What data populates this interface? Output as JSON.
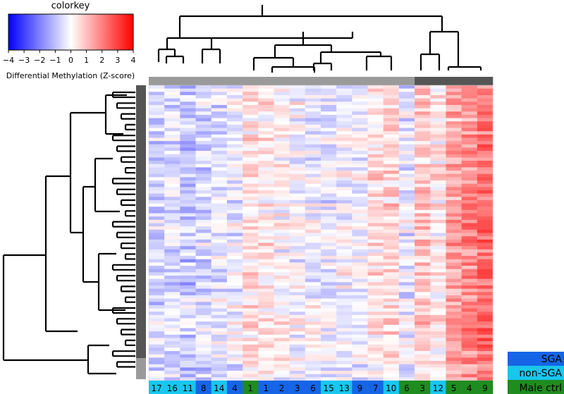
{
  "chart_data": {
    "type": "heatmap",
    "colorkey": {
      "title": "colorkey",
      "label": "Differential Methylation (Z-score)",
      "min": -4,
      "max": 4,
      "ticks": [
        "−4",
        "−3",
        "−2",
        "−1",
        "0",
        "1",
        "2",
        "3",
        "4"
      ],
      "low_color": "#0000ff",
      "mid_color": "#ffffff",
      "high_color": "#ff0000"
    },
    "columns": [
      {
        "label": "17",
        "group": "non-SGA"
      },
      {
        "label": "16",
        "group": "non-SGA"
      },
      {
        "label": "11",
        "group": "non-SGA"
      },
      {
        "label": "8",
        "group": "SGA"
      },
      {
        "label": "14",
        "group": "non-SGA"
      },
      {
        "label": "4",
        "group": "SGA"
      },
      {
        "label": "1",
        "group": "Male ctrl"
      },
      {
        "label": "1",
        "group": "SGA"
      },
      {
        "label": "2",
        "group": "SGA"
      },
      {
        "label": "3",
        "group": "SGA"
      },
      {
        "label": "6",
        "group": "SGA"
      },
      {
        "label": "15",
        "group": "non-SGA"
      },
      {
        "label": "13",
        "group": "non-SGA"
      },
      {
        "label": "9",
        "group": "SGA"
      },
      {
        "label": "7",
        "group": "SGA"
      },
      {
        "label": "10",
        "group": "non-SGA"
      },
      {
        "label": "6",
        "group": "Male ctrl"
      },
      {
        "label": "3",
        "group": "Male ctrl"
      },
      {
        "label": "12",
        "group": "non-SGA"
      },
      {
        "label": "5",
        "group": "Male ctrl"
      },
      {
        "label": "4",
        "group": "Male ctrl"
      },
      {
        "label": "9",
        "group": "Male ctrl"
      }
    ],
    "column_means": [
      -0.6,
      -0.5,
      -0.8,
      -0.6,
      -0.4,
      -0.3,
      0.5,
      0.3,
      0.1,
      -0.1,
      -0.2,
      -0.3,
      -0.1,
      -0.2,
      0.4,
      0.6,
      -0.3,
      0.9,
      0.3,
      1.4,
      1.8,
      2.2
    ],
    "row_count": 90,
    "groups": [
      {
        "name": "SGA",
        "color": "#1565e6"
      },
      {
        "name": "non-SGA",
        "color": "#18c6ee"
      },
      {
        "name": "Male ctrl",
        "color": "#1f8c1f"
      }
    ],
    "column_cluster_bar": [
      "#9a9a9a",
      "#9a9a9a",
      "#9a9a9a",
      "#9a9a9a",
      "#9a9a9a",
      "#9a9a9a",
      "#9a9a9a",
      "#9a9a9a",
      "#9a9a9a",
      "#9a9a9a",
      "#9a9a9a",
      "#9a9a9a",
      "#9a9a9a",
      "#9a9a9a",
      "#9a9a9a",
      "#9a9a9a",
      "#9a9a9a",
      "#555555",
      "#555555",
      "#555555",
      "#555555",
      "#555555"
    ]
  }
}
